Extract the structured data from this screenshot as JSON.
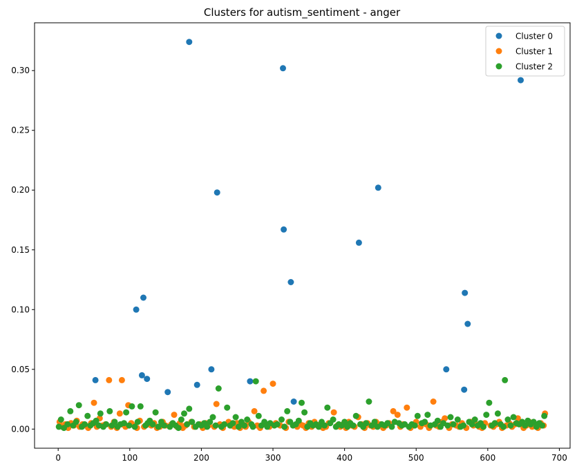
{
  "chart_data": {
    "type": "scatter",
    "title": "Clusters for autism_sentiment - anger",
    "xlabel": "",
    "ylabel": "",
    "xlim": [
      -33,
      715
    ],
    "ylim": [
      -0.016,
      0.34
    ],
    "xticks": [
      0,
      100,
      200,
      300,
      400,
      500,
      600,
      700
    ],
    "yticks": [
      0.0,
      0.05,
      0.1,
      0.15,
      0.2,
      0.25,
      0.3
    ],
    "ytick_labels": [
      "0.00",
      "0.05",
      "0.10",
      "0.15",
      "0.20",
      "0.25",
      "0.30"
    ],
    "legend_position": "top-right",
    "grid": false,
    "series": [
      {
        "name": "Cluster 0",
        "color": "#1f77b4",
        "x": [
          52,
          109,
          117,
          119,
          124,
          153,
          183,
          194,
          214,
          222,
          268,
          314,
          315,
          325,
          329,
          420,
          447,
          542,
          567,
          568,
          572,
          646
        ],
        "y": [
          0.041,
          0.1,
          0.045,
          0.11,
          0.042,
          0.031,
          0.324,
          0.037,
          0.05,
          0.198,
          0.04,
          0.302,
          0.167,
          0.123,
          0.023,
          0.156,
          0.202,
          0.05,
          0.033,
          0.114,
          0.088,
          0.292
        ]
      },
      {
        "name": "Cluster 1",
        "color": "#ff7f0e",
        "x": [
          2,
          6,
          10,
          14,
          18,
          22,
          26,
          30,
          34,
          38,
          42,
          46,
          50,
          54,
          58,
          62,
          66,
          71,
          74,
          78,
          82,
          86,
          89,
          90,
          94,
          98,
          102,
          106,
          110,
          114,
          120,
          126,
          130,
          134,
          138,
          142,
          146,
          150,
          158,
          162,
          166,
          170,
          174,
          178,
          186,
          190,
          198,
          202,
          206,
          210,
          218,
          221,
          226,
          230,
          238,
          242,
          246,
          250,
          254,
          258,
          262,
          266,
          274,
          278,
          282,
          287,
          290,
          295,
          300,
          304,
          310,
          318,
          322,
          334,
          338,
          342,
          346,
          350,
          354,
          358,
          362,
          366,
          370,
          374,
          378,
          385,
          390,
          394,
          398,
          402,
          406,
          410,
          414,
          419,
          424,
          428,
          432,
          436,
          440,
          444,
          450,
          454,
          458,
          462,
          468,
          474,
          478,
          482,
          487,
          492,
          496,
          500,
          506,
          510,
          514,
          518,
          524,
          528,
          532,
          536,
          540,
          546,
          550,
          556,
          560,
          564,
          570,
          576,
          580,
          584,
          588,
          592,
          596,
          604,
          608,
          612,
          616,
          620,
          626,
          630,
          634,
          638,
          642,
          650,
          654,
          658,
          662,
          666,
          670,
          674,
          678,
          680
        ],
        "y": [
          0.006,
          0.002,
          0.004,
          0.001,
          0.005,
          0.003,
          0.007,
          0.002,
          0.004,
          0.003,
          0.001,
          0.005,
          0.022,
          0.002,
          0.009,
          0.003,
          0.004,
          0.041,
          0.002,
          0.006,
          0.001,
          0.013,
          0.041,
          0.004,
          0.002,
          0.02,
          0.005,
          0.003,
          0.001,
          0.007,
          0.002,
          0.004,
          0.003,
          0.005,
          0.001,
          0.002,
          0.006,
          0.003,
          0.004,
          0.012,
          0.002,
          0.005,
          0.001,
          0.003,
          0.006,
          0.002,
          0.004,
          0.001,
          0.005,
          0.003,
          0.002,
          0.021,
          0.004,
          0.001,
          0.006,
          0.003,
          0.002,
          0.005,
          0.001,
          0.004,
          0.002,
          0.006,
          0.015,
          0.003,
          0.001,
          0.032,
          0.004,
          0.002,
          0.038,
          0.005,
          0.003,
          0.001,
          0.006,
          0.002,
          0.004,
          0.003,
          0.001,
          0.005,
          0.002,
          0.006,
          0.003,
          0.004,
          0.001,
          0.002,
          0.005,
          0.014,
          0.003,
          0.002,
          0.004,
          0.001,
          0.006,
          0.003,
          0.002,
          0.01,
          0.004,
          0.001,
          0.005,
          0.003,
          0.002,
          0.006,
          0.004,
          0.001,
          0.003,
          0.005,
          0.015,
          0.012,
          0.002,
          0.004,
          0.018,
          0.001,
          0.003,
          0.006,
          0.002,
          0.005,
          0.004,
          0.001,
          0.023,
          0.003,
          0.002,
          0.006,
          0.009,
          0.001,
          0.004,
          0.003,
          0.002,
          0.005,
          0.001,
          0.006,
          0.003,
          0.004,
          0.002,
          0.001,
          0.005,
          0.003,
          0.002,
          0.004,
          0.006,
          0.001,
          0.003,
          0.005,
          0.002,
          0.004,
          0.009,
          0.001,
          0.003,
          0.006,
          0.002,
          0.004,
          0.001,
          0.005,
          0.003,
          0.013
        ]
      },
      {
        "name": "Cluster 2",
        "color": "#2ca02c",
        "x": [
          1,
          4,
          8,
          13,
          17,
          21,
          25,
          29,
          33,
          37,
          41,
          45,
          49,
          53,
          57,
          59,
          63,
          67,
          72,
          75,
          79,
          83,
          87,
          92,
          95,
          99,
          103,
          107,
          111,
          115,
          122,
          125,
          128,
          132,
          136,
          140,
          144,
          148,
          156,
          160,
          164,
          168,
          172,
          176,
          180,
          183,
          187,
          192,
          196,
          200,
          204,
          208,
          212,
          216,
          220,
          224,
          228,
          232,
          236,
          240,
          244,
          248,
          252,
          256,
          260,
          264,
          270,
          272,
          276,
          280,
          284,
          288,
          292,
          296,
          302,
          306,
          312,
          316,
          320,
          324,
          328,
          332,
          336,
          340,
          344,
          348,
          352,
          356,
          360,
          364,
          368,
          372,
          376,
          380,
          384,
          388,
          392,
          396,
          400,
          404,
          408,
          412,
          416,
          422,
          426,
          430,
          434,
          438,
          442,
          446,
          452,
          456,
          460,
          466,
          470,
          476,
          480,
          484,
          490,
          494,
          498,
          502,
          508,
          512,
          516,
          520,
          526,
          530,
          534,
          538,
          544,
          548,
          552,
          558,
          562,
          566,
          574,
          578,
          582,
          586,
          590,
          594,
          598,
          602,
          606,
          610,
          614,
          618,
          622,
          624,
          628,
          632,
          636,
          640,
          644,
          648,
          652,
          656,
          660,
          664,
          668,
          672,
          676,
          679
        ],
        "y": [
          0.002,
          0.008,
          0.001,
          0.004,
          0.015,
          0.003,
          0.006,
          0.02,
          0.002,
          0.004,
          0.011,
          0.003,
          0.005,
          0.007,
          0.003,
          0.013,
          0.002,
          0.004,
          0.015,
          0.003,
          0.006,
          0.002,
          0.004,
          0.005,
          0.014,
          0.003,
          0.019,
          0.002,
          0.006,
          0.019,
          0.003,
          0.005,
          0.007,
          0.004,
          0.014,
          0.002,
          0.006,
          0.003,
          0.002,
          0.005,
          0.003,
          0.001,
          0.008,
          0.013,
          0.004,
          0.017,
          0.006,
          0.002,
          0.004,
          0.003,
          0.005,
          0.002,
          0.006,
          0.01,
          0.003,
          0.034,
          0.002,
          0.004,
          0.018,
          0.003,
          0.005,
          0.01,
          0.002,
          0.006,
          0.003,
          0.008,
          0.004,
          0.002,
          0.04,
          0.011,
          0.003,
          0.006,
          0.002,
          0.005,
          0.003,
          0.004,
          0.008,
          0.002,
          0.015,
          0.006,
          0.003,
          0.004,
          0.007,
          0.022,
          0.014,
          0.002,
          0.005,
          0.003,
          0.004,
          0.002,
          0.006,
          0.003,
          0.018,
          0.005,
          0.008,
          0.002,
          0.004,
          0.003,
          0.006,
          0.002,
          0.005,
          0.003,
          0.011,
          0.004,
          0.002,
          0.005,
          0.023,
          0.003,
          0.006,
          0.002,
          0.004,
          0.003,
          0.005,
          0.002,
          0.006,
          0.005,
          0.003,
          0.004,
          0.002,
          0.004,
          0.003,
          0.011,
          0.005,
          0.006,
          0.012,
          0.003,
          0.004,
          0.007,
          0.002,
          0.005,
          0.003,
          0.01,
          0.004,
          0.008,
          0.002,
          0.003,
          0.006,
          0.004,
          0.008,
          0.003,
          0.005,
          0.002,
          0.012,
          0.022,
          0.003,
          0.005,
          0.013,
          0.004,
          0.002,
          0.041,
          0.008,
          0.003,
          0.01,
          0.005,
          0.004,
          0.006,
          0.003,
          0.007,
          0.004,
          0.006,
          0.002,
          0.005,
          0.003,
          0.011
        ]
      }
    ]
  }
}
